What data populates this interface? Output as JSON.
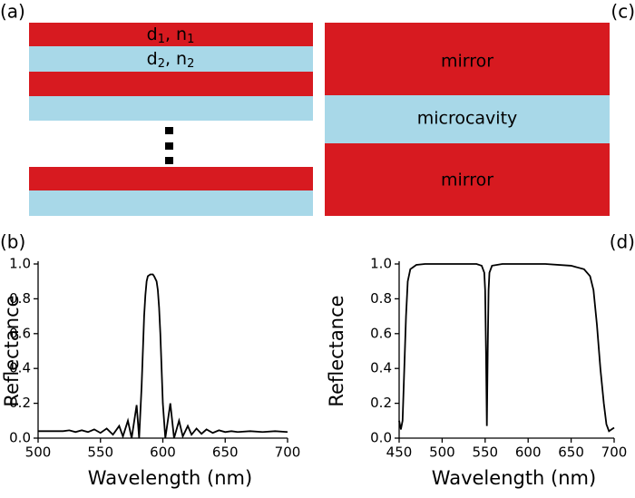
{
  "panel_labels": {
    "a": "(a)",
    "b": "(b)",
    "c": "(c)",
    "d": "(d)"
  },
  "diagram_a": {
    "layer_1": [
      "d",
      "1",
      ", n",
      "1"
    ],
    "layer_2": [
      "d",
      "2",
      ", n",
      "2"
    ]
  },
  "diagram_c": {
    "top": "mirror",
    "middle": "microcavity",
    "bottom": "mirror"
  },
  "chart_data": [
    {
      "type": "line",
      "xlabel": "Wavelength (nm)",
      "ylabel": "Reflectance",
      "color": "#000000",
      "x": [
        500,
        510,
        520,
        525,
        530,
        535,
        540,
        545,
        550,
        555,
        560,
        565,
        568,
        572,
        575,
        579,
        581,
        583,
        585,
        586,
        587,
        588,
        590,
        592,
        593,
        595,
        596,
        597,
        598,
        599,
        600,
        602,
        606,
        609,
        613,
        616,
        620,
        623,
        627,
        631,
        635,
        640,
        645,
        650,
        655,
        660,
        670,
        680,
        690,
        700
      ],
      "values": [
        0.04,
        0.04,
        0.04,
        0.045,
        0.035,
        0.045,
        0.035,
        0.05,
        0.03,
        0.055,
        0.02,
        0.07,
        0.01,
        0.1,
        0.0,
        0.19,
        0.0,
        0.3,
        0.7,
        0.82,
        0.9,
        0.93,
        0.94,
        0.94,
        0.93,
        0.9,
        0.85,
        0.75,
        0.6,
        0.4,
        0.2,
        0.0,
        0.2,
        0.0,
        0.1,
        0.01,
        0.07,
        0.02,
        0.055,
        0.025,
        0.05,
        0.03,
        0.045,
        0.035,
        0.04,
        0.035,
        0.04,
        0.035,
        0.04,
        0.035
      ],
      "xlim": [
        500,
        700
      ],
      "ylim": [
        0,
        1
      ],
      "xticks": [
        500,
        550,
        600,
        650,
        700
      ],
      "yticks": [
        {
          "value": 0,
          "label": "0.0"
        },
        0.2,
        0.4,
        0.6,
        0.8,
        {
          "value": 1,
          "label": "1.0"
        }
      ]
    },
    {
      "type": "line",
      "xlabel": "Wavelength (nm)",
      "ylabel": "Reflectance",
      "color": "#000000",
      "x": [
        450,
        452,
        454,
        456,
        458,
        460,
        463,
        470,
        480,
        500,
        540,
        546,
        549,
        550,
        551,
        552,
        553,
        554,
        555,
        558,
        570,
        620,
        650,
        665,
        672,
        676,
        680,
        684,
        688,
        691,
        694,
        697,
        700
      ],
      "values": [
        0.1,
        0.05,
        0.1,
        0.4,
        0.7,
        0.9,
        0.97,
        0.995,
        1.0,
        1.0,
        1.0,
        0.99,
        0.95,
        0.85,
        0.5,
        0.07,
        0.5,
        0.85,
        0.95,
        0.99,
        1.0,
        1.0,
        0.99,
        0.97,
        0.93,
        0.85,
        0.65,
        0.4,
        0.2,
        0.08,
        0.04,
        0.05,
        0.06
      ],
      "xlim": [
        450,
        700
      ],
      "ylim": [
        0,
        1
      ],
      "xticks": [
        450,
        500,
        550,
        600,
        650,
        700
      ],
      "yticks": [
        {
          "value": 0,
          "label": "0.0"
        },
        0.2,
        0.4,
        0.6,
        0.8,
        {
          "value": 1,
          "label": "1.0"
        }
      ]
    }
  ]
}
